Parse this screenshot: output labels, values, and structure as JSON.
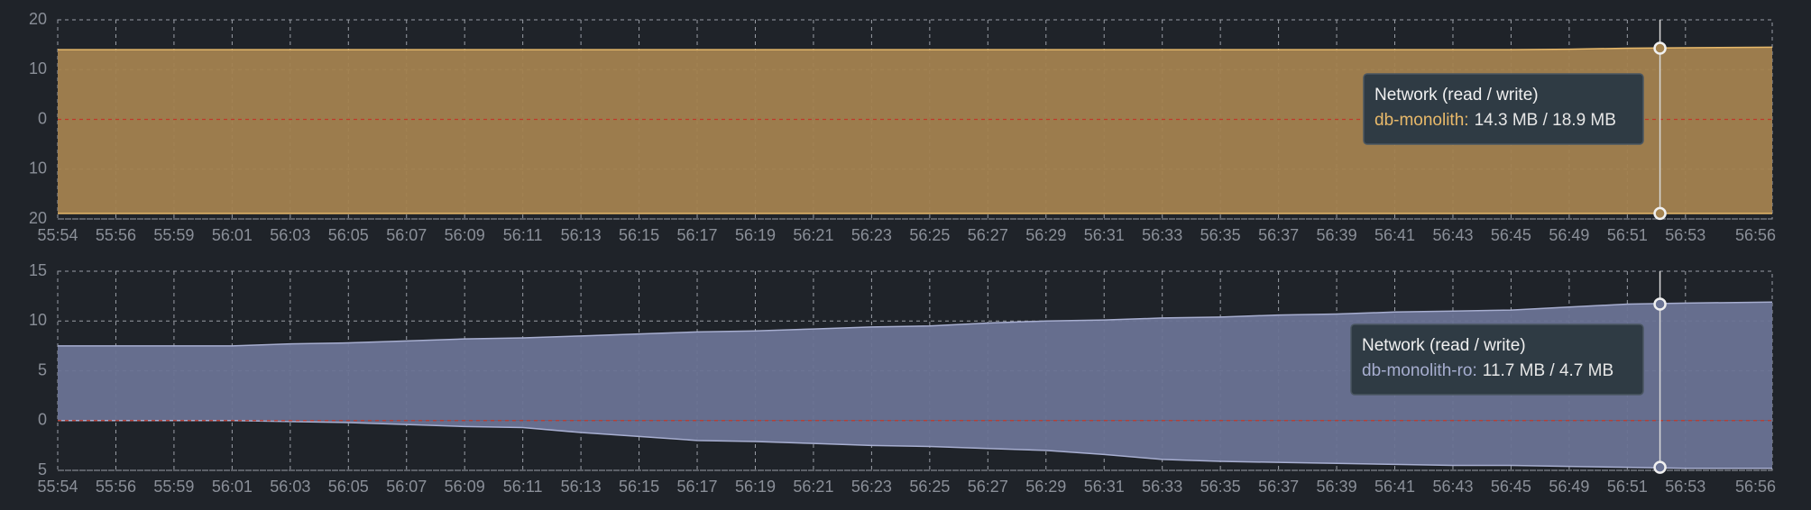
{
  "chart_data": [
    {
      "type": "area",
      "categories": [
        "55:54",
        "55:56",
        "55:59",
        "56:01",
        "56:03",
        "56:05",
        "56:07",
        "56:09",
        "56:11",
        "56:13",
        "56:15",
        "56:17",
        "56:19",
        "56:21",
        "56:23",
        "56:25",
        "56:27",
        "56:29",
        "56:31",
        "56:33",
        "56:35",
        "56:37",
        "56:39",
        "56:41",
        "56:43",
        "56:45",
        "56:49",
        "56:51",
        "56:53",
        "56:56"
      ],
      "series": [
        {
          "color": "#e8b96a",
          "fill": "#a3824f",
          "values": [
            14,
            14,
            14,
            14,
            14,
            14,
            14,
            14,
            14,
            14,
            14,
            14,
            14,
            14,
            14,
            14,
            14,
            14,
            14,
            14,
            14,
            14,
            14,
            14,
            14,
            14,
            14.1,
            14.3,
            14.4,
            14.5
          ]
        },
        {
          "color": "#e8b96a",
          "fill": "#a3824f",
          "values": [
            -18.9,
            -18.9,
            -18.9,
            -18.9,
            -18.9,
            -18.9,
            -18.9,
            -18.9,
            -18.9,
            -18.9,
            -18.9,
            -18.9,
            -18.9,
            -18.9,
            -18.9,
            -18.9,
            -18.9,
            -18.9,
            -18.9,
            -18.9,
            -18.9,
            -18.9,
            -18.9,
            -18.9,
            -18.9,
            -18.9,
            -18.9,
            -18.9,
            -18.9,
            -18.9
          ]
        }
      ],
      "ylim": [
        -20,
        20
      ],
      "yticks": [
        {
          "value": -20,
          "label": "20"
        },
        {
          "value": -10,
          "label": "10"
        },
        0,
        10,
        20
      ],
      "grid": true,
      "tooltip": {
        "title": "Network (read / write)",
        "series_label": "db-monolith:",
        "value_text": "14.3 MB / 18.9 MB"
      }
    },
    {
      "type": "area",
      "categories": [
        "55:54",
        "55:56",
        "55:59",
        "56:01",
        "56:03",
        "56:05",
        "56:07",
        "56:09",
        "56:11",
        "56:13",
        "56:15",
        "56:17",
        "56:19",
        "56:21",
        "56:23",
        "56:25",
        "56:27",
        "56:29",
        "56:31",
        "56:33",
        "56:35",
        "56:37",
        "56:39",
        "56:41",
        "56:43",
        "56:45",
        "56:49",
        "56:51",
        "56:53",
        "56:56"
      ],
      "series": [
        {
          "color": "#a7aed0",
          "fill": "#6a7394",
          "values": [
            7.5,
            7.5,
            7.5,
            7.5,
            7.7,
            7.8,
            8.0,
            8.2,
            8.3,
            8.5,
            8.7,
            8.9,
            9.0,
            9.2,
            9.4,
            9.5,
            9.8,
            10.0,
            10.1,
            10.3,
            10.4,
            10.6,
            10.7,
            10.9,
            11.0,
            11.1,
            11.4,
            11.7,
            11.8,
            11.9
          ]
        },
        {
          "color": "#a7aed0",
          "fill": "#6a7394",
          "values": [
            0,
            0,
            0,
            0,
            -0.1,
            -0.2,
            -0.4,
            -0.6,
            -0.7,
            -1.2,
            -1.6,
            -2.0,
            -2.1,
            -2.3,
            -2.5,
            -2.6,
            -2.8,
            -3.0,
            -3.4,
            -3.9,
            -4.1,
            -4.2,
            -4.3,
            -4.4,
            -4.5,
            -4.5,
            -4.6,
            -4.7,
            -4.8,
            -4.8
          ]
        }
      ],
      "ylim": [
        -5,
        15
      ],
      "yticks": [
        {
          "value": -5,
          "label": "5"
        },
        0,
        5,
        10,
        15
      ],
      "grid": true,
      "tooltip": {
        "title": "Network (read / write)",
        "series_label": "db-monolith-ro:",
        "value_text": "11.7 MB / 4.7 MB"
      }
    }
  ]
}
